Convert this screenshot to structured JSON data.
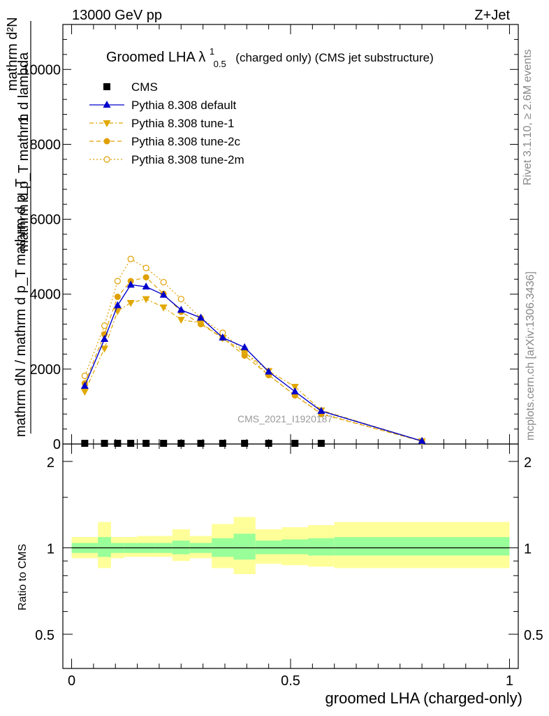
{
  "header": {
    "energy": "13000 GeV pp",
    "process": "Z+Jet"
  },
  "side_text": {
    "rivet": "Rivet 3.1.10, ≥ 2.6M events",
    "mcplots": "mcplots.cern.ch [arXiv:1306.3436]"
  },
  "watermark": "CMS_2021_I1920187",
  "chart_data": [
    {
      "type": "line",
      "title": "Groomed LHA λ",
      "title_sup": "1",
      "title_sub": "0.5",
      "title_suffix": "(charged only) (CMS jet substructure)",
      "ylabel_num_line1": "mathrm d²N",
      "ylabel_num_line2": "mathrm d p_T mathrm d lambda",
      "ylabel_den": "mathrm d N / mathrm d p_T",
      "ylabel_prefix": "1",
      "ylabel_den_full": "mathrm dN / mathrm d p_T mathrm d p_T",
      "xlim": [
        -0.02,
        1.02
      ],
      "ylim": [
        0,
        11200
      ],
      "yticks": [
        0,
        2000,
        4000,
        6000,
        8000,
        10000
      ],
      "ytick_labels": [
        "0",
        "2000",
        "4000",
        "6000",
        "8000",
        "10000"
      ],
      "grid": false,
      "legend_position": "top-left",
      "series": [
        {
          "name": "CMS",
          "color": "#000000",
          "marker": "square",
          "x": [
            0.03,
            0.075,
            0.105,
            0.135,
            0.17,
            0.21,
            0.25,
            0.295,
            0.345,
            0.395,
            0.45,
            0.51,
            0.57
          ],
          "y": [
            0,
            0,
            0,
            0,
            0,
            0,
            0,
            0,
            0,
            0,
            0,
            0,
            0
          ]
        },
        {
          "name": "Pythia 8.308 default",
          "color": "#0000cc",
          "marker": "triangle-up",
          "line": "solid",
          "x": [
            0.03,
            0.075,
            0.105,
            0.135,
            0.17,
            0.21,
            0.25,
            0.295,
            0.345,
            0.395,
            0.45,
            0.51,
            0.57,
            0.8
          ],
          "y": [
            1550,
            2800,
            3700,
            4250,
            4200,
            3980,
            3580,
            3370,
            2840,
            2580,
            1930,
            1400,
            880,
            80
          ]
        },
        {
          "name": "Pythia 8.308 tune-1",
          "color": "#e0a800",
          "marker": "triangle-down",
          "line": "dashdot",
          "x": [
            0.03,
            0.075,
            0.105,
            0.135,
            0.17,
            0.21,
            0.25,
            0.295,
            0.345,
            0.395,
            0.45,
            0.51,
            0.57,
            0.8
          ],
          "y": [
            1400,
            2550,
            3550,
            3770,
            3870,
            3650,
            3320,
            3230,
            2830,
            2450,
            1950,
            1530,
            900,
            80
          ]
        },
        {
          "name": "Pythia 8.308 tune-2c",
          "color": "#e0a000",
          "marker": "circle",
          "line": "dashed",
          "x": [
            0.03,
            0.075,
            0.105,
            0.135,
            0.17,
            0.21,
            0.25,
            0.295,
            0.345,
            0.395,
            0.45,
            0.51,
            0.57,
            0.8
          ],
          "y": [
            1620,
            2930,
            3930,
            4350,
            4450,
            4010,
            3530,
            3200,
            2830,
            2360,
            1840,
            1300,
            800,
            75
          ]
        },
        {
          "name": "Pythia 8.308 tune-2m",
          "color": "#e0a000",
          "marker": "open-circle",
          "line": "dotted",
          "x": [
            0.03,
            0.075,
            0.105,
            0.135,
            0.17,
            0.21,
            0.25,
            0.295,
            0.345,
            0.395,
            0.45,
            0.51,
            0.57,
            0.8
          ],
          "y": [
            1820,
            3160,
            4350,
            4940,
            4700,
            4320,
            3870,
            3360,
            2970,
            2460,
            1840,
            1300,
            820,
            75
          ]
        }
      ]
    },
    {
      "type": "area",
      "ylabel": "Ratio to CMS",
      "xlabel": "groomed LHA (charged-only)",
      "xlim": [
        -0.02,
        1.02
      ],
      "ylim": [
        0.38,
        2.3
      ],
      "xticks": [
        0,
        0.5,
        1
      ],
      "xtick_labels": [
        "0",
        "0.5",
        "1"
      ],
      "yticks": [
        0.5,
        1,
        2
      ],
      "ytick_labels": [
        "0.5",
        "1",
        "2"
      ],
      "bands_note": "CMS total uncertainty (yellow) and statistical uncertainty (green) around ratio 1",
      "bin_edges": [
        0.0,
        0.06,
        0.09,
        0.12,
        0.15,
        0.19,
        0.23,
        0.27,
        0.32,
        0.37,
        0.42,
        0.48,
        0.54,
        0.6,
        1.0
      ],
      "total_lo": [
        0.92,
        0.85,
        0.92,
        0.93,
        0.93,
        0.93,
        0.9,
        0.92,
        0.85,
        0.81,
        0.88,
        0.87,
        0.86,
        0.85
      ],
      "total_hi": [
        1.09,
        1.23,
        1.09,
        1.09,
        1.1,
        1.1,
        1.16,
        1.1,
        1.21,
        1.28,
        1.16,
        1.18,
        1.2,
        1.23
      ],
      "stat_lo": [
        0.96,
        0.93,
        0.96,
        0.96,
        0.96,
        0.96,
        0.95,
        0.96,
        0.93,
        0.91,
        0.95,
        0.95,
        0.94,
        0.94
      ],
      "stat_hi": [
        1.04,
        1.09,
        1.04,
        1.04,
        1.04,
        1.04,
        1.06,
        1.04,
        1.08,
        1.12,
        1.06,
        1.07,
        1.08,
        1.09
      ]
    }
  ],
  "colors": {
    "total_band": "#ffff99",
    "stat_band": "#99ff99"
  }
}
